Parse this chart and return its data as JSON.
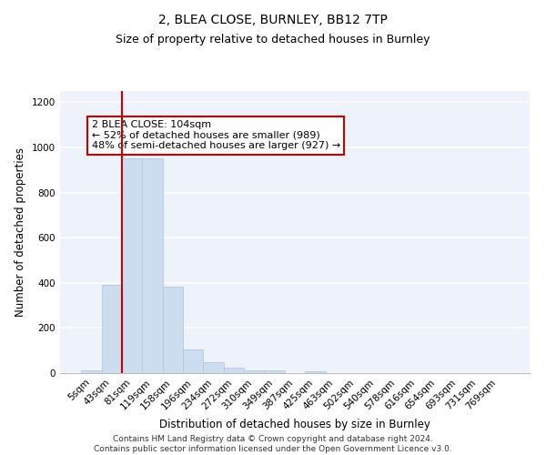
{
  "title": "2, BLEA CLOSE, BURNLEY, BB12 7TP",
  "subtitle": "Size of property relative to detached houses in Burnley",
  "xlabel": "Distribution of detached houses by size in Burnley",
  "ylabel": "Number of detached properties",
  "categories": [
    "5sqm",
    "43sqm",
    "81sqm",
    "119sqm",
    "158sqm",
    "196sqm",
    "234sqm",
    "272sqm",
    "310sqm",
    "349sqm",
    "387sqm",
    "425sqm",
    "463sqm",
    "502sqm",
    "540sqm",
    "578sqm",
    "616sqm",
    "654sqm",
    "693sqm",
    "731sqm",
    "769sqm"
  ],
  "values": [
    12,
    393,
    950,
    950,
    385,
    105,
    48,
    25,
    12,
    12,
    0,
    10,
    0,
    0,
    0,
    0,
    0,
    0,
    0,
    0,
    0
  ],
  "bar_color": "#ccddf0",
  "bar_edge_color": "#aac4e0",
  "vline_bar_index": 2,
  "vline_color": "#cc0000",
  "annotation_text": "2 BLEA CLOSE: 104sqm\n← 52% of detached houses are smaller (989)\n48% of semi-detached houses are larger (927) →",
  "annotation_box_color": "white",
  "annotation_box_edge_color": "#cc0000",
  "ylim": [
    0,
    1250
  ],
  "yticks": [
    0,
    200,
    400,
    600,
    800,
    1000,
    1200
  ],
  "footer_line1": "Contains HM Land Registry data © Crown copyright and database right 2024.",
  "footer_line2": "Contains public sector information licensed under the Open Government Licence v3.0.",
  "background_color": "#eef3fb",
  "grid_color": "white",
  "title_fontsize": 10,
  "subtitle_fontsize": 9,
  "axis_label_fontsize": 8.5,
  "tick_fontsize": 7.5,
  "annotation_fontsize": 8,
  "footer_fontsize": 6.5
}
